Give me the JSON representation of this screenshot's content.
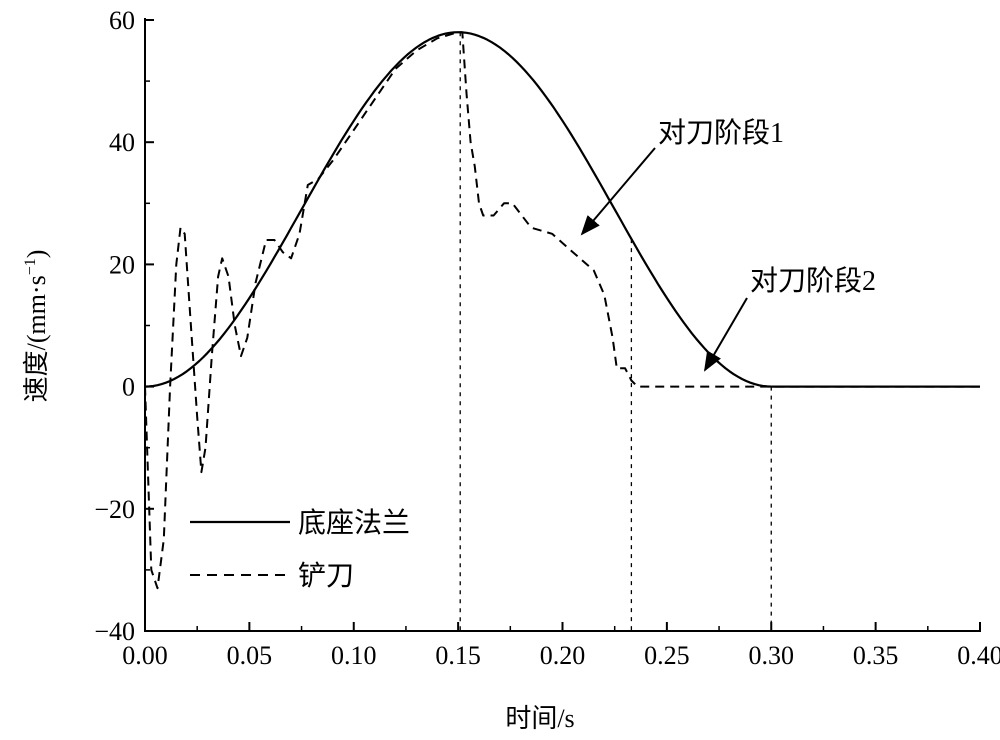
{
  "chart_data": {
    "type": "line",
    "title": "",
    "xlabel": "时间/s",
    "ylabel": "速度/(mm·s",
    "ylabel_sup": "−1",
    "ylabel_close": ")",
    "xlim": [
      0,
      0.4
    ],
    "ylim": [
      -40,
      60
    ],
    "xticks": [
      "0.00",
      "0.05",
      "0.10",
      "0.15",
      "0.20",
      "0.25",
      "0.30",
      "0.35",
      "0.40"
    ],
    "xtick_values": [
      0,
      0.05,
      0.1,
      0.15,
      0.2,
      0.25,
      0.3,
      0.35,
      0.4
    ],
    "yticks": [
      "−40",
      "−20",
      "0",
      "20",
      "40",
      "60"
    ],
    "ytick_values": [
      -40,
      -20,
      0,
      20,
      40,
      60
    ],
    "grid": false,
    "legend_position": "bottom-left",
    "series": [
      {
        "name": "底座法兰",
        "style": "solid",
        "x": [
          0,
          0.01,
          0.02,
          0.03,
          0.04,
          0.05,
          0.06,
          0.07,
          0.08,
          0.09,
          0.1,
          0.11,
          0.12,
          0.13,
          0.14,
          0.15,
          0.16,
          0.17,
          0.18,
          0.19,
          0.2,
          0.21,
          0.22,
          0.23,
          0.24,
          0.25,
          0.26,
          0.27,
          0.28,
          0.29,
          0.3,
          0.35,
          0.4
        ],
        "y": [
          0,
          0.6,
          2.5,
          5.5,
          9.6,
          14.5,
          20.0,
          25.9,
          31.9,
          37.8,
          43.5,
          48.4,
          52.5,
          55.7,
          57.4,
          58.0,
          57.4,
          55.7,
          52.5,
          48.4,
          43.5,
          37.8,
          31.9,
          25.9,
          20.0,
          14.5,
          9.6,
          5.5,
          2.5,
          0.6,
          0,
          0,
          0
        ]
      },
      {
        "name": "铲刀",
        "style": "dashed",
        "x": [
          0,
          0.001,
          0.003,
          0.006,
          0.009,
          0.012,
          0.015,
          0.017,
          0.019,
          0.022,
          0.025,
          0.027,
          0.029,
          0.032,
          0.035,
          0.037,
          0.04,
          0.043,
          0.046,
          0.049,
          0.053,
          0.058,
          0.062,
          0.066,
          0.07,
          0.074,
          0.078,
          0.083,
          0.09,
          0.1,
          0.11,
          0.12,
          0.13,
          0.14,
          0.15,
          0.152,
          0.154,
          0.156,
          0.158,
          0.16,
          0.162,
          0.167,
          0.172,
          0.176,
          0.185,
          0.195,
          0.205,
          0.215,
          0.22,
          0.224,
          0.226,
          0.23,
          0.233,
          0.236,
          0.3,
          0.4
        ],
        "y": [
          0,
          -10,
          -30,
          -33,
          -25,
          0,
          20,
          26,
          25,
          10,
          -5,
          -14,
          -10,
          5,
          18,
          21,
          18,
          10,
          5,
          8,
          17,
          24,
          24,
          22,
          21,
          25,
          33,
          34,
          37,
          42,
          47,
          52,
          55,
          57,
          58,
          58,
          48,
          40,
          36,
          30,
          28,
          28,
          30,
          30,
          26,
          25,
          22,
          19,
          15,
          8,
          3,
          3,
          1,
          0,
          0,
          0
        ]
      }
    ],
    "reference_lines_x": [
      0.151,
      0.233,
      0.3
    ],
    "annotations": [
      {
        "text": "对刀阶段1",
        "target": [
          0.207,
          24
        ]
      },
      {
        "text": "对刀阶段2",
        "target": [
          0.268,
          2
        ]
      }
    ]
  }
}
